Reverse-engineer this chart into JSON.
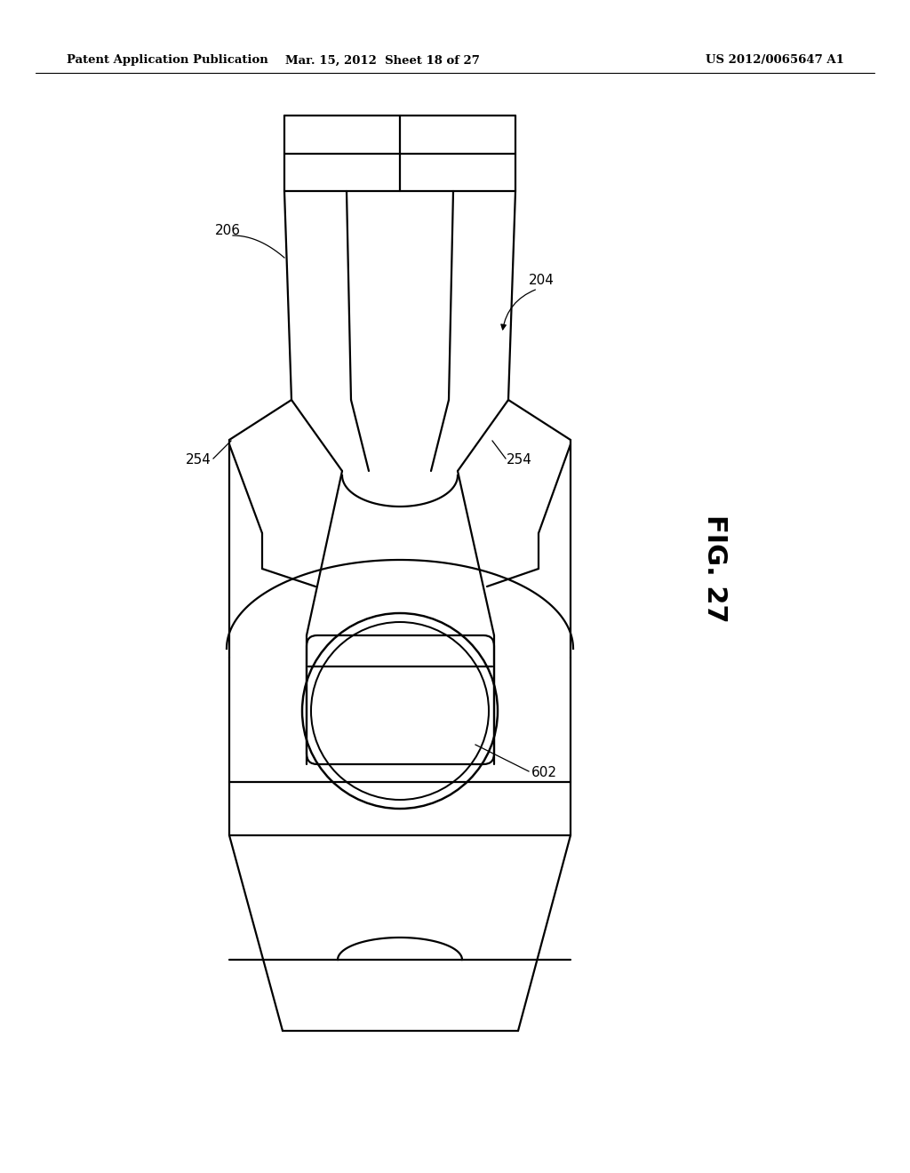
{
  "title_left": "Patent Application Publication",
  "title_mid": "Mar. 15, 2012  Sheet 18 of 27",
  "title_right": "US 2012/0065647 A1",
  "fig_label": "FIG. 27",
  "bg_color": "#ffffff",
  "line_color": "#000000",
  "line_width": 1.6
}
